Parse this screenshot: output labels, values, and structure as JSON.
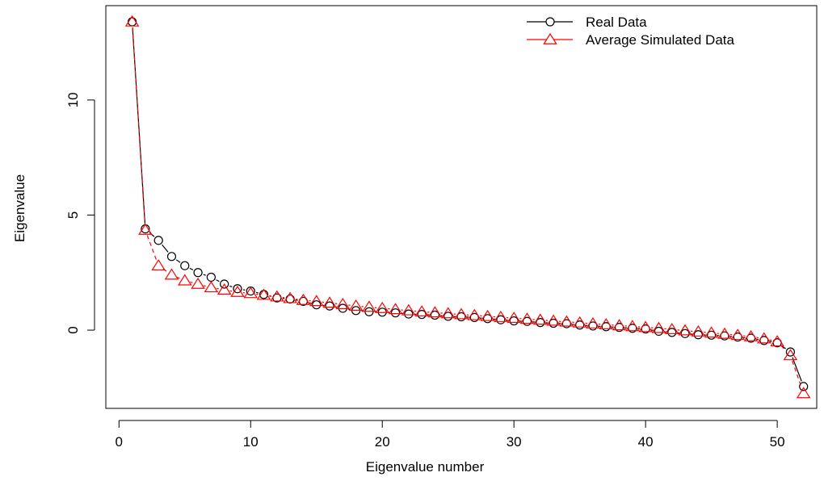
{
  "chart_data": {
    "type": "line",
    "xlabel": "Eigenvalue number",
    "ylabel": "Eigenvalue",
    "xlim": [
      -1,
      53
    ],
    "ylim": [
      -3.4,
      14.1
    ],
    "x_ticks": [
      0,
      10,
      20,
      30,
      40,
      50
    ],
    "y_ticks": [
      0,
      5,
      10
    ],
    "grid": false,
    "legend_position": "top-right",
    "x": [
      1,
      2,
      3,
      4,
      5,
      6,
      7,
      8,
      9,
      10,
      11,
      12,
      13,
      14,
      15,
      16,
      17,
      18,
      19,
      20,
      21,
      22,
      23,
      24,
      25,
      26,
      27,
      28,
      29,
      30,
      31,
      32,
      33,
      34,
      35,
      36,
      37,
      38,
      39,
      40,
      41,
      42,
      43,
      44,
      45,
      46,
      47,
      48,
      49,
      50,
      51,
      52
    ],
    "series": [
      {
        "name": "Real Data",
        "color": "#000000",
        "marker": "circle",
        "line_style": "solid",
        "values": [
          13.4,
          4.4,
          3.9,
          3.2,
          2.8,
          2.5,
          2.3,
          2.0,
          1.8,
          1.7,
          1.55,
          1.4,
          1.35,
          1.25,
          1.1,
          1.05,
          0.95,
          0.85,
          0.8,
          0.78,
          0.75,
          0.7,
          0.68,
          0.65,
          0.6,
          0.58,
          0.55,
          0.5,
          0.45,
          0.4,
          0.38,
          0.33,
          0.3,
          0.28,
          0.22,
          0.18,
          0.15,
          0.12,
          0.08,
          0.05,
          -0.05,
          -0.1,
          -0.15,
          -0.2,
          -0.22,
          -0.25,
          -0.3,
          -0.35,
          -0.45,
          -0.55,
          -0.95,
          -2.45
        ]
      },
      {
        "name": "Average Simulated Data",
        "color": "#ff0000",
        "marker": "triangle",
        "line_style": "dashed",
        "values": [
          13.4,
          4.35,
          2.8,
          2.4,
          2.15,
          2.0,
          1.85,
          1.75,
          1.65,
          1.6,
          1.52,
          1.45,
          1.38,
          1.3,
          1.25,
          1.18,
          1.12,
          1.05,
          1.0,
          0.95,
          0.9,
          0.85,
          0.8,
          0.76,
          0.72,
          0.68,
          0.64,
          0.6,
          0.56,
          0.52,
          0.48,
          0.44,
          0.4,
          0.36,
          0.32,
          0.28,
          0.24,
          0.2,
          0.16,
          0.12,
          0.08,
          0.03,
          -0.02,
          -0.07,
          -0.12,
          -0.17,
          -0.22,
          -0.28,
          -0.37,
          -0.5,
          -1.1,
          -2.75
        ]
      }
    ]
  }
}
